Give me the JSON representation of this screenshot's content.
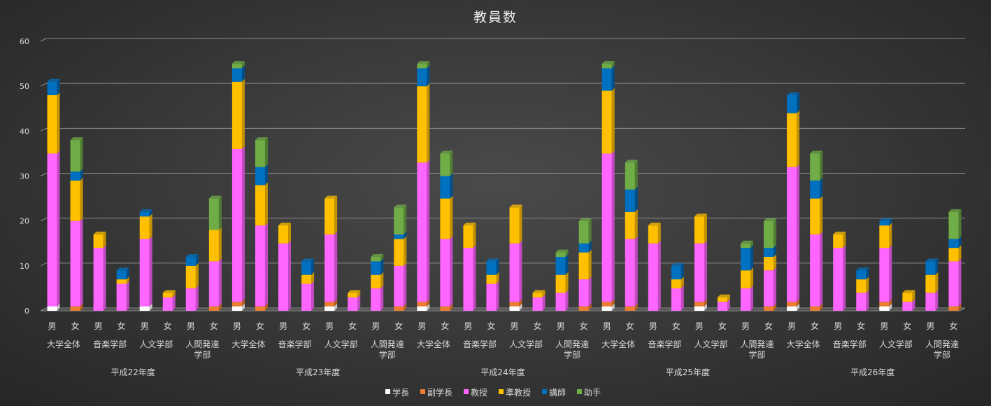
{
  "chart_data": {
    "type": "bar",
    "stacked": true,
    "title": "教員数",
    "ylim": [
      0,
      60
    ],
    "yticks": [
      0,
      10,
      20,
      30,
      40,
      50,
      60
    ],
    "grid": true,
    "legend_position": "bottom",
    "years": [
      "平成22年度",
      "平成23年度",
      "平成24年度",
      "平成25年度",
      "平成26年度"
    ],
    "groups": [
      "大学全体",
      "音楽学部",
      "人文学部",
      "人間発達\n学部"
    ],
    "genders": [
      "男",
      "女"
    ],
    "series": [
      {
        "name": "学長",
        "color": "#ffffff",
        "side": "#c8c8c8",
        "values": [
          1,
          0,
          0,
          0,
          1,
          0,
          0,
          0,
          1,
          0,
          0,
          0,
          1,
          0,
          0,
          0,
          1,
          0,
          0,
          0,
          1,
          0,
          0,
          0,
          1,
          0,
          0,
          0,
          1,
          0,
          0,
          0,
          1,
          0,
          0,
          0,
          1,
          0,
          0,
          0
        ]
      },
      {
        "name": "副学長",
        "color": "#ed7d31",
        "side": "#b85f22",
        "values": [
          0,
          1,
          0,
          0,
          0,
          0,
          0,
          1,
          1,
          1,
          0,
          0,
          1,
          0,
          0,
          1,
          1,
          1,
          0,
          0,
          1,
          0,
          0,
          1,
          1,
          1,
          0,
          0,
          1,
          0,
          0,
          1,
          1,
          1,
          0,
          0,
          1,
          0,
          0,
          1
        ]
      },
      {
        "name": "教授",
        "color": "#ff66ff",
        "side": "#c24ac2",
        "values": [
          34,
          19,
          14,
          6,
          15,
          3,
          5,
          10,
          34,
          18,
          15,
          6,
          15,
          3,
          5,
          9,
          31,
          15,
          14,
          6,
          13,
          3,
          4,
          6,
          33,
          15,
          15,
          5,
          13,
          2,
          5,
          8,
          30,
          16,
          14,
          4,
          12,
          2,
          4,
          10
        ]
      },
      {
        "name": "準教授",
        "color": "#ffc000",
        "side": "#c29100",
        "values": [
          13,
          9,
          3,
          1,
          5,
          1,
          5,
          7,
          15,
          9,
          4,
          2,
          8,
          1,
          3,
          6,
          17,
          9,
          5,
          2,
          8,
          1,
          4,
          6,
          14,
          6,
          4,
          2,
          6,
          1,
          4,
          3,
          12,
          8,
          3,
          3,
          5,
          2,
          4,
          3
        ]
      },
      {
        "name": "講師",
        "color": "#0070c0",
        "side": "#004f8a",
        "values": [
          3,
          2,
          0,
          2,
          1,
          0,
          2,
          0,
          3,
          4,
          0,
          3,
          0,
          0,
          3,
          1,
          4,
          5,
          0,
          3,
          0,
          0,
          4,
          2,
          5,
          5,
          0,
          3,
          0,
          0,
          5,
          2,
          4,
          4,
          0,
          2,
          1,
          0,
          3,
          2
        ]
      },
      {
        "name": "助手",
        "color": "#70ad47",
        "side": "#4f7d32",
        "values": [
          0,
          7,
          0,
          0,
          0,
          0,
          0,
          7,
          1,
          6,
          0,
          0,
          0,
          0,
          1,
          6,
          1,
          5,
          0,
          0,
          0,
          0,
          1,
          5,
          1,
          6,
          0,
          0,
          0,
          0,
          1,
          6,
          0,
          6,
          0,
          0,
          0,
          0,
          0,
          6
        ]
      }
    ]
  }
}
